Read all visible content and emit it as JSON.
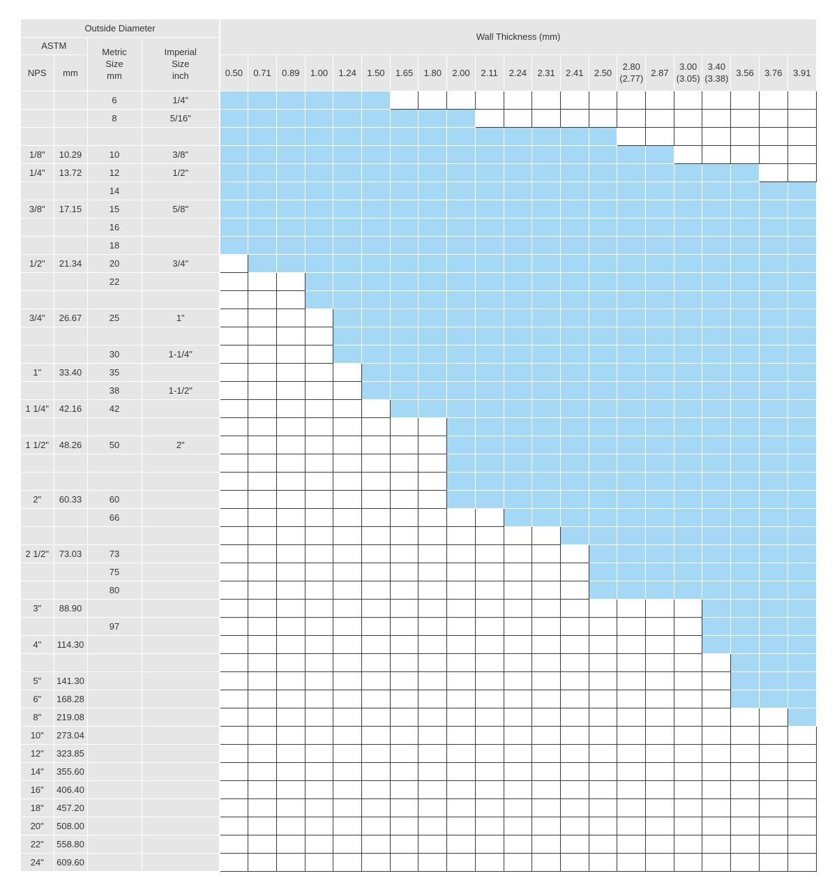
{
  "headers": {
    "outside_diameter": "Outside Diameter",
    "wall_thickness": "Wall Thickness (mm)",
    "astm": "ASTM",
    "nps": "NPS",
    "mm": "mm",
    "metric": [
      "Metric",
      "Size",
      "mm"
    ],
    "imperial": [
      "Imperial",
      "Size",
      "inch"
    ]
  },
  "thickness": [
    [
      "0.50"
    ],
    [
      "0.71"
    ],
    [
      "0.89"
    ],
    [
      "1.00"
    ],
    [
      "1.24"
    ],
    [
      "1.50"
    ],
    [
      "1.65"
    ],
    [
      "1.80"
    ],
    [
      "2.00"
    ],
    [
      "2.11"
    ],
    [
      "2.24"
    ],
    [
      "2.31"
    ],
    [
      "2.41"
    ],
    [
      "2.50"
    ],
    [
      "2.80",
      "(2.77)"
    ],
    [
      "2.87"
    ],
    [
      "3.00",
      "(3.05)"
    ],
    [
      "3.40",
      "(3.38)"
    ],
    [
      "3.56"
    ],
    [
      "3.76"
    ],
    [
      "3.91"
    ]
  ],
  "rows": [
    {
      "nps": "",
      "mm": "",
      "metric": "6",
      "imperial": "1/4\"",
      "range": [
        0,
        5
      ]
    },
    {
      "nps": "",
      "mm": "",
      "metric": "8",
      "imperial": "5/16\"",
      "range": [
        0,
        8
      ]
    },
    {
      "nps": "",
      "mm": "",
      "metric": "",
      "imperial": "",
      "range": [
        0,
        13
      ]
    },
    {
      "nps": "1/8\"",
      "mm": "10.29",
      "metric": "10",
      "imperial": "3/8\"",
      "range": [
        0,
        15
      ]
    },
    {
      "nps": "1/4\"",
      "mm": "13.72",
      "metric": "12",
      "imperial": "1/2\"",
      "range": [
        0,
        18
      ]
    },
    {
      "nps": "",
      "mm": "",
      "metric": "14",
      "imperial": "",
      "range": [
        0,
        20
      ]
    },
    {
      "nps": "3/8\"",
      "mm": "17.15",
      "metric": "15",
      "imperial": "5/8\"",
      "range": [
        0,
        20
      ]
    },
    {
      "nps": "",
      "mm": "",
      "metric": "16",
      "imperial": "",
      "range": [
        0,
        20
      ]
    },
    {
      "nps": "",
      "mm": "",
      "metric": "18",
      "imperial": "",
      "range": [
        0,
        20
      ]
    },
    {
      "nps": "1/2\"",
      "mm": "21.34",
      "metric": "20",
      "imperial": "3/4\"",
      "range": [
        1,
        20
      ]
    },
    {
      "nps": "",
      "mm": "",
      "metric": "22",
      "imperial": "",
      "range": [
        3,
        20
      ]
    },
    {
      "nps": "",
      "mm": "",
      "metric": "",
      "imperial": "",
      "range": [
        3,
        20
      ]
    },
    {
      "nps": "3/4\"",
      "mm": "26.67",
      "metric": "25",
      "imperial": "1\"",
      "range": [
        4,
        20
      ]
    },
    {
      "nps": "",
      "mm": "",
      "metric": "",
      "imperial": "",
      "range": [
        4,
        20
      ]
    },
    {
      "nps": "",
      "mm": "",
      "metric": "30",
      "imperial": "1-1/4\"",
      "range": [
        4,
        20
      ]
    },
    {
      "nps": "1\"",
      "mm": "33.40",
      "metric": "35",
      "imperial": "",
      "range": [
        5,
        20
      ]
    },
    {
      "nps": "",
      "mm": "",
      "metric": "38",
      "imperial": "1-1/2\"",
      "range": [
        5,
        20
      ]
    },
    {
      "nps": "1 1/4\"",
      "mm": "42.16",
      "metric": "42",
      "imperial": "",
      "range": [
        6,
        20
      ]
    },
    {
      "nps": "",
      "mm": "",
      "metric": "",
      "imperial": "",
      "range": [
        8,
        20
      ]
    },
    {
      "nps": "1 1/2\"",
      "mm": "48.26",
      "metric": "50",
      "imperial": "2\"",
      "range": [
        8,
        20
      ]
    },
    {
      "nps": "",
      "mm": "",
      "metric": "",
      "imperial": "",
      "range": [
        8,
        20
      ]
    },
    {
      "nps": "",
      "mm": "",
      "metric": "",
      "imperial": "",
      "range": [
        8,
        20
      ]
    },
    {
      "nps": "2\"",
      "mm": "60.33",
      "metric": "60",
      "imperial": "",
      "range": [
        8,
        20
      ]
    },
    {
      "nps": "",
      "mm": "",
      "metric": "66",
      "imperial": "",
      "range": [
        10,
        20
      ]
    },
    {
      "nps": "",
      "mm": "",
      "metric": "",
      "imperial": "",
      "range": [
        12,
        20
      ]
    },
    {
      "nps": "2 1/2\"",
      "mm": "73.03",
      "metric": "73",
      "imperial": "",
      "range": [
        13,
        20
      ]
    },
    {
      "nps": "",
      "mm": "",
      "metric": "75",
      "imperial": "",
      "range": [
        13,
        20
      ]
    },
    {
      "nps": "",
      "mm": "",
      "metric": "80",
      "imperial": "",
      "range": [
        13,
        20
      ]
    },
    {
      "nps": "3\"",
      "mm": "88.90",
      "metric": "",
      "imperial": "",
      "range": [
        17,
        20
      ]
    },
    {
      "nps": "",
      "mm": "",
      "metric": "97",
      "imperial": "",
      "range": [
        17,
        20
      ]
    },
    {
      "nps": "4\"",
      "mm": "114.30",
      "metric": "",
      "imperial": "",
      "range": [
        17,
        20
      ]
    },
    {
      "nps": "",
      "mm": "",
      "metric": "",
      "imperial": "",
      "range": [
        18,
        20
      ]
    },
    {
      "nps": "5\"",
      "mm": "141.30",
      "metric": "",
      "imperial": "",
      "range": [
        18,
        20
      ]
    },
    {
      "nps": "6\"",
      "mm": "168.28",
      "metric": "",
      "imperial": "",
      "range": [
        18,
        20
      ]
    },
    {
      "nps": "8\"",
      "mm": "219.08",
      "metric": "",
      "imperial": "",
      "range": [
        20,
        20
      ]
    },
    {
      "nps": "10\"",
      "mm": "273.04",
      "metric": "",
      "imperial": "",
      "range": null
    },
    {
      "nps": "12\"",
      "mm": "323.85",
      "metric": "",
      "imperial": "",
      "range": null
    },
    {
      "nps": "14\"",
      "mm": "355.60",
      "metric": "",
      "imperial": "",
      "range": null
    },
    {
      "nps": "16\"",
      "mm": "406.40",
      "metric": "",
      "imperial": "",
      "range": null
    },
    {
      "nps": "18\"",
      "mm": "457.20",
      "metric": "",
      "imperial": "",
      "range": null
    },
    {
      "nps": "20\"",
      "mm": "508.00",
      "metric": "",
      "imperial": "",
      "range": null
    },
    {
      "nps": "22\"",
      "mm": "558.80",
      "metric": "",
      "imperial": "",
      "range": null
    },
    {
      "nps": "24\"",
      "mm": "609.60",
      "metric": "",
      "imperial": "",
      "range": null
    }
  ],
  "colors": {
    "available": "#a4d8f5",
    "header_bg": "#e6e6e6",
    "grid_line": "#3a3a3a"
  }
}
